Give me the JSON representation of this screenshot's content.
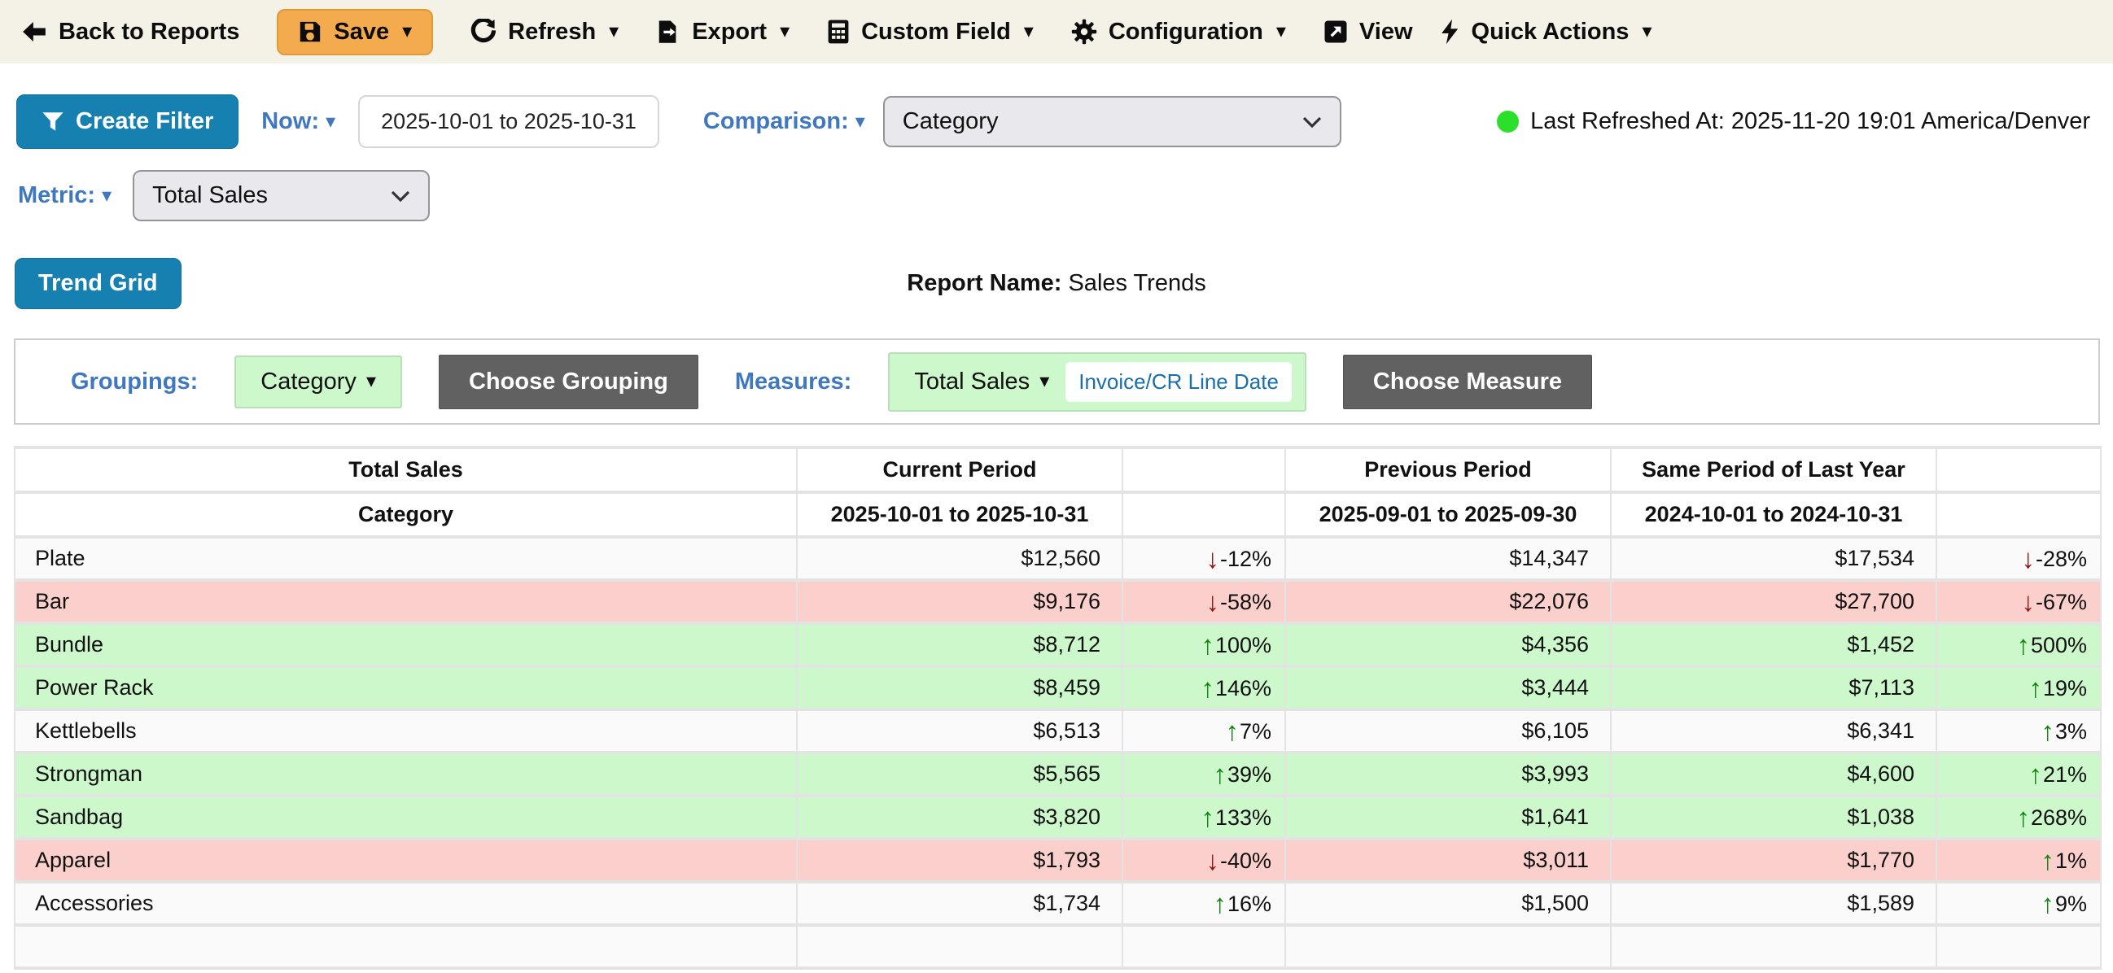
{
  "colors": {
    "accent_blue": "#1681b1",
    "link_blue": "#4078bf",
    "save_orange": "#f3ab4e",
    "toolbar_bg": "#f4f1e7",
    "row_green": "#ccf8cc",
    "row_red": "#fbcfcc",
    "up_green": "#0b860b",
    "down_red": "#970f0f",
    "dot_green": "#2ae02a",
    "pill_blue": "#1a6fa8",
    "dark_btn": "#616161"
  },
  "toolbar": {
    "back": "Back to Reports",
    "save": "Save",
    "refresh": "Refresh",
    "export": "Export",
    "custom_field": "Custom Field",
    "configuration": "Configuration",
    "view": "View",
    "quick_actions": "Quick Actions"
  },
  "filters": {
    "create_filter": "Create Filter",
    "now_label": "Now:",
    "date_range": "2025-10-01 to 2025-10-31",
    "comparison_label": "Comparison:",
    "comparison_value": "Category",
    "metric_label": "Metric:",
    "metric_value": "Total Sales",
    "last_refreshed": "Last Refreshed At: 2025-11-20 19:01 America/Denver"
  },
  "report": {
    "trend_grid_label": "Trend Grid",
    "report_name_label": "Report Name:",
    "report_name_value": "Sales Trends"
  },
  "grouping_bar": {
    "groupings_label": "Groupings:",
    "grouping_value": "Category",
    "choose_grouping": "Choose Grouping",
    "measures_label": "Measures:",
    "measure_value": "Total Sales",
    "measure_date_field": "Invoice/CR Line Date",
    "choose_measure": "Choose Measure"
  },
  "table": {
    "header_row1": [
      "Total Sales",
      "Current Period",
      "",
      "Previous Period",
      "Same Period of Last Year",
      ""
    ],
    "header_row2": [
      "Category",
      "2025-10-01 to 2025-10-31",
      "",
      "2025-09-01 to 2025-09-30",
      "2024-10-01 to 2024-10-31",
      ""
    ],
    "rows": [
      {
        "category": "Plate",
        "current": "$12,560",
        "change1": "-12%",
        "change1_dir": "down",
        "previous": "$14,347",
        "same_period": "$17,534",
        "change2": "-28%",
        "change2_dir": "down",
        "highlight": "none"
      },
      {
        "category": "Bar",
        "current": "$9,176",
        "change1": "-58%",
        "change1_dir": "down",
        "previous": "$22,076",
        "same_period": "$27,700",
        "change2": "-67%",
        "change2_dir": "down",
        "highlight": "red"
      },
      {
        "category": "Bundle",
        "current": "$8,712",
        "change1": "100%",
        "change1_dir": "up",
        "previous": "$4,356",
        "same_period": "$1,452",
        "change2": "500%",
        "change2_dir": "up",
        "highlight": "green"
      },
      {
        "category": "Power Rack",
        "current": "$8,459",
        "change1": "146%",
        "change1_dir": "up",
        "previous": "$3,444",
        "same_period": "$7,113",
        "change2": "19%",
        "change2_dir": "up",
        "highlight": "green"
      },
      {
        "category": "Kettlebells",
        "current": "$6,513",
        "change1": "7%",
        "change1_dir": "up",
        "previous": "$6,105",
        "same_period": "$6,341",
        "change2": "3%",
        "change2_dir": "up",
        "highlight": "none"
      },
      {
        "category": "Strongman",
        "current": "$5,565",
        "change1": "39%",
        "change1_dir": "up",
        "previous": "$3,993",
        "same_period": "$4,600",
        "change2": "21%",
        "change2_dir": "up",
        "highlight": "green"
      },
      {
        "category": "Sandbag",
        "current": "$3,820",
        "change1": "133%",
        "change1_dir": "up",
        "previous": "$1,641",
        "same_period": "$1,038",
        "change2": "268%",
        "change2_dir": "up",
        "highlight": "green"
      },
      {
        "category": "Apparel",
        "current": "$1,793",
        "change1": "-40%",
        "change1_dir": "down",
        "previous": "$3,011",
        "same_period": "$1,770",
        "change2": "1%",
        "change2_dir": "up",
        "highlight": "red"
      },
      {
        "category": "Accessories",
        "current": "$1,734",
        "change1": "16%",
        "change1_dir": "up",
        "previous": "$1,500",
        "same_period": "$1,589",
        "change2": "9%",
        "change2_dir": "up",
        "highlight": "none"
      }
    ]
  }
}
